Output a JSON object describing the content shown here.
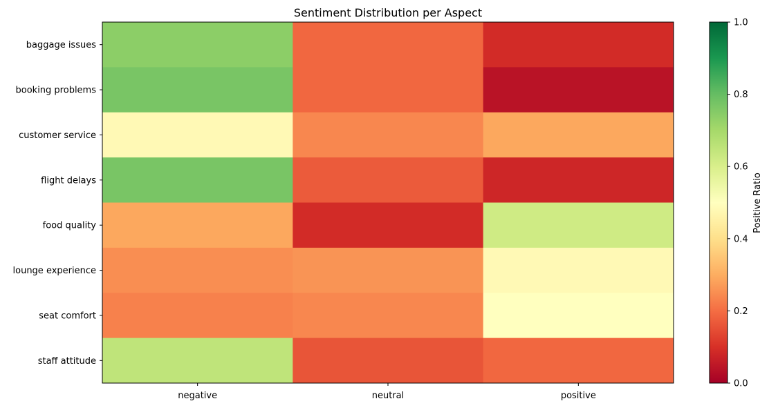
{
  "chart_data": {
    "type": "heatmap",
    "title": "Sentiment Distribution per Aspect",
    "xlabel": "",
    "ylabel": "",
    "x_categories": [
      "negative",
      "neutral",
      "positive"
    ],
    "y_categories": [
      "baggage issues",
      "booking problems",
      "customer service",
      "flight delays",
      "food quality",
      "lounge experience",
      "seat comfort",
      "staff attitude"
    ],
    "values": [
      [
        0.74,
        0.19,
        0.09
      ],
      [
        0.77,
        0.19,
        0.04
      ],
      [
        0.48,
        0.24,
        0.29
      ],
      [
        0.77,
        0.17,
        0.08
      ],
      [
        0.29,
        0.09,
        0.62
      ],
      [
        0.25,
        0.26,
        0.48
      ],
      [
        0.23,
        0.24,
        0.5
      ],
      [
        0.65,
        0.16,
        0.19
      ]
    ],
    "colorbar": {
      "label": "Positive Ratio",
      "range": [
        0.0,
        1.0
      ],
      "ticks": [
        "0.0",
        "0.2",
        "0.4",
        "0.6",
        "0.8",
        "1.0"
      ],
      "colormap": "RdYlGn"
    },
    "grid": false
  }
}
